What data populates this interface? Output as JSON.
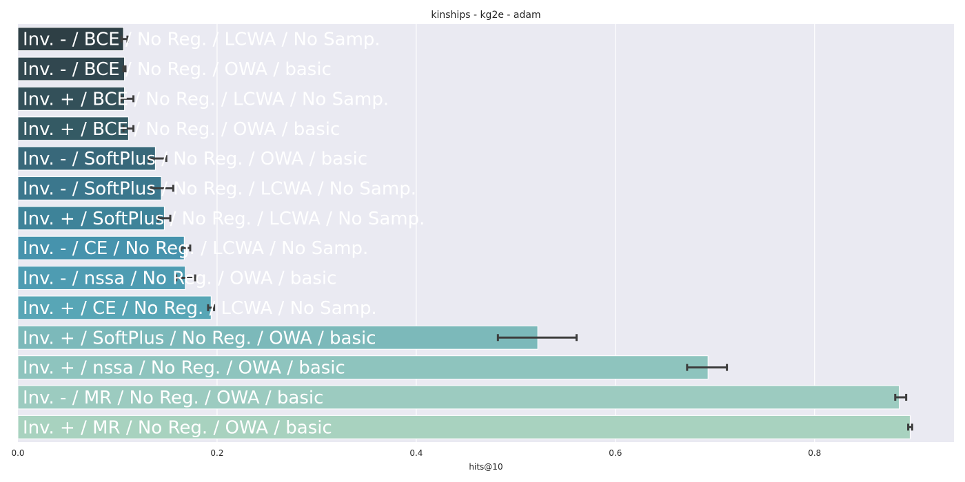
{
  "chart_data": {
    "type": "bar",
    "orientation": "horizontal",
    "title": "kinships - kg2e - adam",
    "xlabel": "hits@10",
    "ylabel": "",
    "xlim": [
      0.0,
      0.94
    ],
    "xticks": [
      0.0,
      0.2,
      0.4,
      0.6,
      0.8
    ],
    "xtick_labels": [
      "0.0",
      "0.2",
      "0.4",
      "0.6",
      "0.8"
    ],
    "grid": true,
    "background": "#eaeaf2",
    "categories": [
      "Inv. - / BCE / No Reg. / LCWA / No Samp.",
      "Inv. - / BCE / No Reg. / OWA / basic",
      "Inv. + / BCE / No Reg. / LCWA / No Samp.",
      "Inv. + / BCE / No Reg. / OWA / basic",
      "Inv. - / SoftPlus / No Reg. / OWA / basic",
      "Inv. - / SoftPlus / No Reg. / LCWA / No Samp.",
      "Inv. + / SoftPlus / No Reg. / LCWA / No Samp.",
      "Inv. - / CE / No Reg. / LCWA / No Samp.",
      "Inv. - / nssa / No Reg. / OWA / basic",
      "Inv. + / CE / No Reg. / LCWA / No Samp.",
      "Inv. + / SoftPlus / No Reg. / OWA / basic",
      "Inv. + / nssa / No Reg. / OWA / basic",
      "Inv. - / MR / No Reg. / OWA / basic",
      "Inv. + / MR / No Reg. / OWA / basic"
    ],
    "values": [
      0.106,
      0.107,
      0.107,
      0.111,
      0.138,
      0.144,
      0.147,
      0.167,
      0.168,
      0.194,
      0.522,
      0.693,
      0.885,
      0.896
    ],
    "error_low": [
      0.104,
      0.106,
      0.104,
      0.106,
      0.132,
      0.134,
      0.141,
      0.164,
      0.159,
      0.191,
      0.482,
      0.672,
      0.881,
      0.894
    ],
    "error_high": [
      0.11,
      0.108,
      0.116,
      0.116,
      0.149,
      0.156,
      0.153,
      0.173,
      0.178,
      0.197,
      0.561,
      0.712,
      0.892,
      0.898
    ],
    "colors": [
      "#2e3f45",
      "#31474f",
      "#335059",
      "#345a64",
      "#38687a",
      "#3b778d",
      "#3e8399",
      "#4693ad",
      "#4e9cb2",
      "#58a6b6",
      "#7cb9ba",
      "#8ec4be",
      "#9ccbc0",
      "#a8d2bf"
    ]
  }
}
